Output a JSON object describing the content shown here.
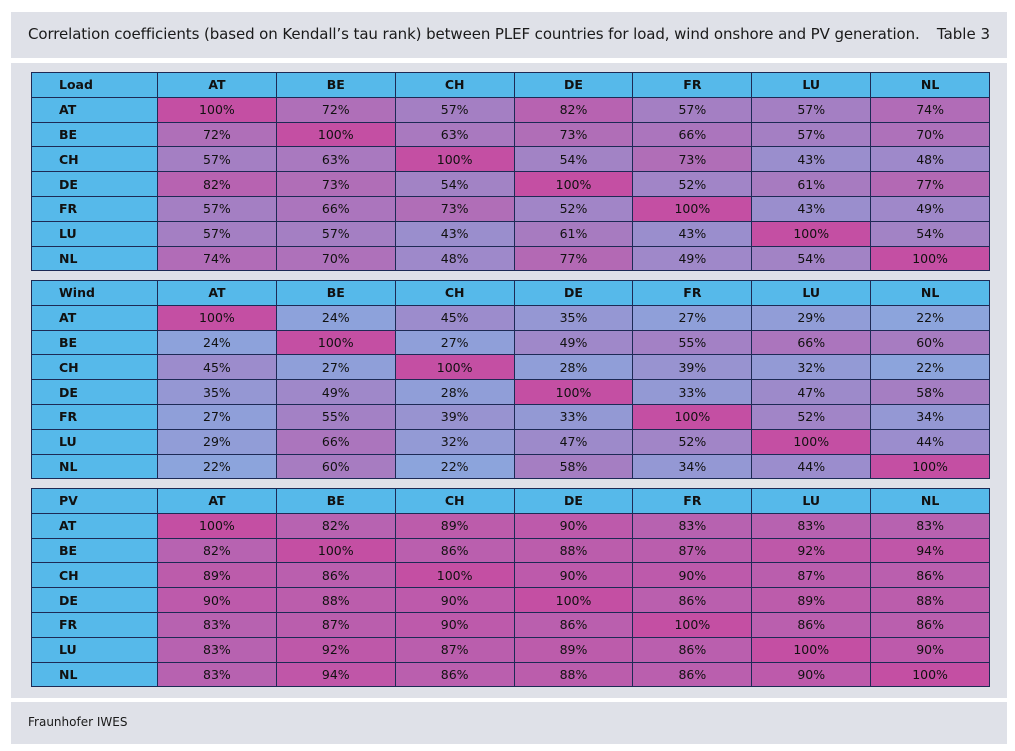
{
  "header": {
    "title": "Correlation coefficients (based on Kendall’s tau rank) between PLEF countries for load, wind onshore and PV generation.",
    "tag": "Table 3"
  },
  "footer": {
    "source": "Fraunhofer IWES"
  },
  "countries": [
    "AT",
    "BE",
    "CH",
    "DE",
    "FR",
    "LU",
    "NL"
  ],
  "tables": [
    {
      "label": "Load",
      "rows": [
        {
          "name": "AT",
          "values": [
            100,
            72,
            57,
            82,
            57,
            57,
            74
          ]
        },
        {
          "name": "BE",
          "values": [
            72,
            100,
            63,
            73,
            66,
            57,
            70
          ]
        },
        {
          "name": "CH",
          "values": [
            57,
            63,
            100,
            54,
            73,
            43,
            48
          ]
        },
        {
          "name": "DE",
          "values": [
            82,
            73,
            54,
            100,
            52,
            61,
            77
          ]
        },
        {
          "name": "FR",
          "values": [
            57,
            66,
            73,
            52,
            100,
            43,
            49
          ]
        },
        {
          "name": "LU",
          "values": [
            57,
            57,
            43,
            61,
            43,
            100,
            54
          ]
        },
        {
          "name": "NL",
          "values": [
            74,
            70,
            48,
            77,
            49,
            54,
            100
          ]
        }
      ]
    },
    {
      "label": "Wind",
      "rows": [
        {
          "name": "AT",
          "values": [
            100,
            24,
            45,
            35,
            27,
            29,
            22
          ]
        },
        {
          "name": "BE",
          "values": [
            24,
            100,
            27,
            49,
            55,
            66,
            60
          ]
        },
        {
          "name": "CH",
          "values": [
            45,
            27,
            100,
            28,
            39,
            32,
            22
          ]
        },
        {
          "name": "DE",
          "values": [
            35,
            49,
            28,
            100,
            33,
            47,
            58
          ]
        },
        {
          "name": "FR",
          "values": [
            27,
            55,
            39,
            33,
            100,
            52,
            34
          ]
        },
        {
          "name": "LU",
          "values": [
            29,
            66,
            32,
            47,
            52,
            100,
            44
          ]
        },
        {
          "name": "NL",
          "values": [
            22,
            60,
            22,
            58,
            34,
            44,
            100
          ]
        }
      ]
    },
    {
      "label": "PV",
      "rows": [
        {
          "name": "AT",
          "values": [
            100,
            82,
            89,
            90,
            83,
            83,
            83
          ]
        },
        {
          "name": "BE",
          "values": [
            82,
            100,
            86,
            88,
            87,
            92,
            94
          ]
        },
        {
          "name": "CH",
          "values": [
            89,
            86,
            100,
            90,
            90,
            87,
            86
          ]
        },
        {
          "name": "DE",
          "values": [
            90,
            88,
            90,
            100,
            86,
            89,
            88
          ]
        },
        {
          "name": "FR",
          "values": [
            83,
            87,
            90,
            86,
            100,
            86,
            86
          ]
        },
        {
          "name": "LU",
          "values": [
            83,
            92,
            87,
            89,
            86,
            100,
            90
          ]
        },
        {
          "name": "NL",
          "values": [
            83,
            94,
            86,
            88,
            86,
            90,
            100
          ]
        }
      ]
    }
  ],
  "value_suffix": "%",
  "colors": {
    "header_blue": "#56b9ea",
    "scale_low": "#8ba6dd",
    "scale_high": "#c44fa3",
    "diagonal": "#c44fa3",
    "panel_bg": "#dfe1e8"
  }
}
